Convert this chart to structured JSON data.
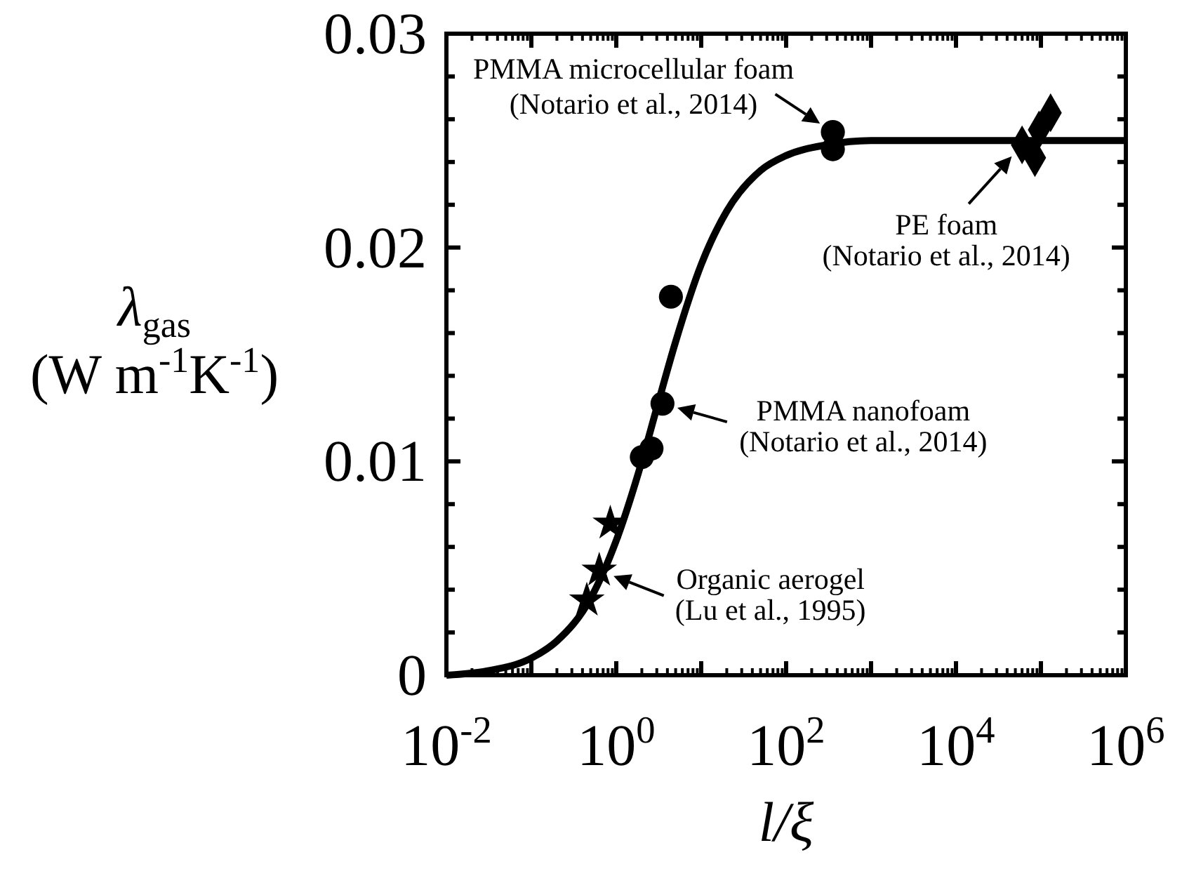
{
  "chart_data": {
    "type": "scatter",
    "xlabel": "l/ξ",
    "ylabel": "λ$_{gas}$\n(W m$^{-1}$K$^{-1}$)",
    "log": "x",
    "grid": false,
    "xlim": [
      0.01,
      1000000
    ],
    "ylim": [
      0,
      0.03
    ],
    "xticks": [
      {
        "value": 0.01,
        "label": "10$^{-2}$"
      },
      {
        "value": 0.1,
        "label": null
      },
      {
        "value": 1,
        "label": "10$^{0}$"
      },
      {
        "value": 10,
        "label": null
      },
      {
        "value": 100,
        "label": "10$^{2}$"
      },
      {
        "value": 1000,
        "label": null
      },
      {
        "value": 10000,
        "label": "10$^{4}$"
      },
      {
        "value": 100000,
        "label": null
      },
      {
        "value": 1000000,
        "label": "10$^{6}$"
      }
    ],
    "yticks": [
      0,
      {
        "value": 0.002,
        "label": null
      },
      {
        "value": 0.004,
        "label": null
      },
      {
        "value": 0.006,
        "label": null
      },
      {
        "value": 0.008,
        "label": null
      },
      0.01,
      {
        "value": 0.012,
        "label": null
      },
      {
        "value": 0.014,
        "label": null
      },
      {
        "value": 0.016,
        "label": null
      },
      {
        "value": 0.018,
        "label": null
      },
      0.02,
      {
        "value": 0.022,
        "label": null
      },
      {
        "value": 0.024,
        "label": null
      },
      {
        "value": 0.026,
        "label": null
      },
      {
        "value": 0.028,
        "label": null
      },
      0.03
    ],
    "series": [
      {
        "type": "line",
        "color": "#000000",
        "marker": "none",
        "line_style": "solid",
        "x": [
          0.01,
          0.03,
          0.1,
          0.2,
          0.5,
          1,
          2,
          3,
          5,
          10,
          20,
          50,
          100,
          300,
          1000,
          10000,
          1000000
        ],
        "values": [
          0,
          0.0002,
          0.0008,
          0.0016,
          0.0036,
          0.0063,
          0.01,
          0.0125,
          0.0156,
          0.0192,
          0.0217,
          0.0236,
          0.0243,
          0.0248,
          0.025,
          0.025,
          0.025
        ]
      },
      {
        "color": "#000000",
        "marker": "circle",
        "x": [
          4.4,
          3.5,
          2.0,
          2.6,
          355,
          355
        ],
        "values": [
          0.0177,
          0.0127,
          0.0102,
          0.0106,
          0.0254,
          0.0246
        ]
      },
      {
        "color": "#000000",
        "marker": "star",
        "x": [
          0.85,
          0.63,
          0.45
        ],
        "values": [
          0.0071,
          0.0049,
          0.0035
        ]
      },
      {
        "color": "#000000",
        "marker": "diamond",
        "x": [
          130000,
          95000,
          60000,
          85000
        ],
        "values": [
          0.0263,
          0.0255,
          0.0248,
          0.0242
        ]
      }
    ],
    "annotations": [
      {
        "text": "PMMA microcellular foam\n(Notario et al., 2014)",
        "x": 355,
        "y": 0.0254
      },
      {
        "text": "PE foam\n(Notario et al., 2014)",
        "x": 60000,
        "y": 0.0248
      },
      {
        "text": "PMMA nanofoam\n(Notario et al., 2014)",
        "x": 3.5,
        "y": 0.0127
      },
      {
        "text": "Organic aerogel\n(Lu et al., 1995)",
        "x": 0.63,
        "y": 0.0049
      }
    ]
  }
}
